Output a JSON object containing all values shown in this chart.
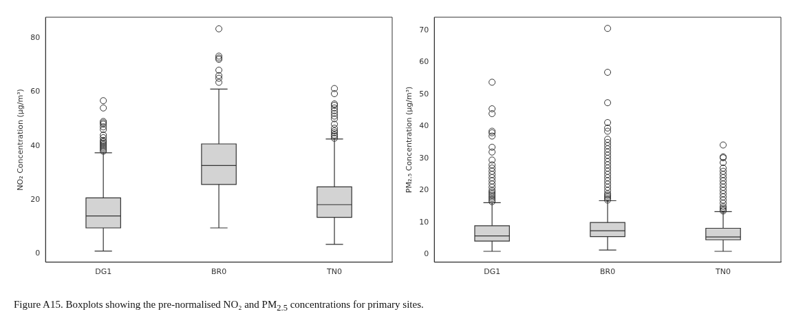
{
  "chart_data": [
    {
      "type": "box",
      "ylabel": "NO₂ Concentration (μg/m³)",
      "categories": [
        "DG1",
        "BR0",
        "TN0"
      ],
      "ylim": [
        -3.1,
        87.6
      ],
      "yticks": [
        0,
        20,
        40,
        60,
        80
      ],
      "grid": false,
      "legend": false,
      "color": "#d3d3d3",
      "boxes": [
        {
          "low": 1,
          "q1": 9.6,
          "median": 14,
          "q3": 20.7,
          "high": 37.4,
          "outliers": [
            38,
            38.5,
            39,
            39.5,
            40,
            40.5,
            41,
            41.5,
            42,
            43,
            44,
            46,
            47,
            48,
            48.5,
            49,
            54,
            56.7
          ]
        },
        {
          "low": 9.6,
          "q1": 25.7,
          "median": 32.7,
          "q3": 40.7,
          "high": 61,
          "outliers": [
            63.5,
            65,
            66,
            68,
            72,
            72.5,
            73.2,
            83.3
          ]
        },
        {
          "low": 3.5,
          "q1": 13.5,
          "median": 18.2,
          "q3": 24.8,
          "high": 42.5,
          "outliers": [
            42.8,
            43.5,
            44,
            44.8,
            45.5,
            46.5,
            48,
            50,
            51,
            52,
            53,
            54,
            55,
            55.5,
            59.3,
            61.2
          ]
        }
      ],
      "annotations": [
        "Figure A15. Boxplots showing the pre-normalised NO₂ and PM$_{2.5}$ concentrations for primary sites."
      ]
    },
    {
      "type": "box",
      "ylabel": "PM₂.₅ Concentration (μg/m³)",
      "categories": [
        "DG1",
        "BR0",
        "TN0"
      ],
      "ylim": [
        -2.4,
        74.1
      ],
      "yticks": [
        0,
        10,
        20,
        30,
        40,
        50,
        60,
        70
      ],
      "grid": false,
      "legend": false,
      "color": "#d3d3d3",
      "boxes": [
        {
          "low": 1,
          "q1": 4.2,
          "median": 5.8,
          "q3": 9,
          "high": 16.2,
          "outliers": [
            16.5,
            17,
            17.5,
            18,
            18.5,
            19,
            19.5,
            20,
            21,
            22,
            23,
            24,
            25,
            26,
            27,
            28,
            29.5,
            32,
            33.5,
            37,
            38,
            38.5,
            44,
            45.5,
            53.8
          ]
        },
        {
          "low": 1.4,
          "q1": 5.6,
          "median": 7.4,
          "q3": 10,
          "high": 16.8,
          "outliers": [
            17,
            17.5,
            18,
            18.5,
            19,
            20,
            21,
            22,
            23,
            24,
            25,
            26,
            27,
            28,
            29,
            30,
            31,
            32,
            33,
            34,
            35,
            36,
            38.5,
            39.5,
            41.2,
            47.4,
            56.9,
            70.6
          ]
        },
        {
          "low": 1,
          "q1": 4.6,
          "median": 5.5,
          "q3": 8.2,
          "high": 13.4,
          "outliers": [
            13.6,
            14,
            14.5,
            15,
            16,
            17,
            18,
            19,
            20,
            21,
            22,
            23,
            24,
            25,
            26,
            27,
            28.7,
            30.2,
            30.5,
            34.2
          ]
        }
      ]
    }
  ]
}
